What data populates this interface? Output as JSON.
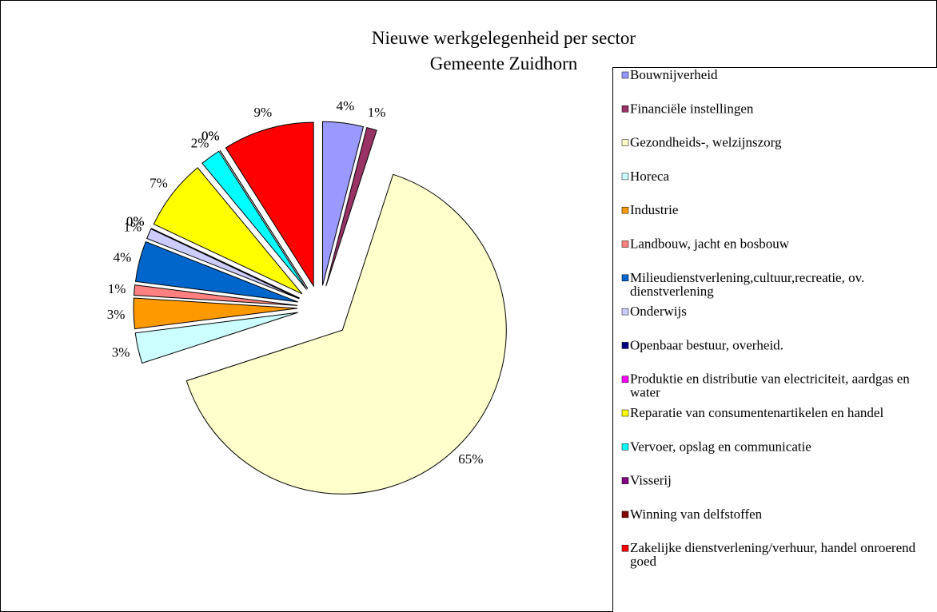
{
  "chart_data": {
    "type": "pie",
    "title": "Nieuwe werkgelegenheid per sector",
    "subtitle": "Gemeente Zuidhorn",
    "categories": [
      "Bouwnijverheid",
      "Financiële instellingen",
      "Gezondheids-, welzijnszorg",
      "Horeca",
      "Industrie",
      "Landbouw, jacht en bosbouw",
      "Milieudienstverlening,cultuur,recreatie, ov. dienstverlening",
      "Onderwijs",
      "Openbaar bestuur, overheid.",
      "Produktie en distributie van electriciteit, aardgas en water",
      "Reparatie van consumentenartikelen en handel",
      "Vervoer, opslag en communicatie",
      "Visserij",
      "Winning van delfstoffen",
      "Zakelijke dienstverlening/verhuur, handel onroerend goed"
    ],
    "values": [
      4,
      1,
      65,
      3,
      3,
      1,
      4,
      1,
      0,
      0,
      7,
      2,
      0,
      0,
      9
    ],
    "value_labels": [
      "4%",
      "1%",
      "65%",
      "3%",
      "3%",
      "1%",
      "4%",
      "1%",
      "0%",
      "0%",
      "7%",
      "2%",
      "0%",
      "0%",
      "9%"
    ],
    "colors": [
      "#9999ff",
      "#993366",
      "#ffffcc",
      "#ccffff",
      "#ff9900",
      "#ff8080",
      "#0066cc",
      "#ccccff",
      "#000080",
      "#ff00ff",
      "#ffff00",
      "#00ffff",
      "#800080",
      "#800000",
      "#ff0000"
    ],
    "legend": "right"
  }
}
